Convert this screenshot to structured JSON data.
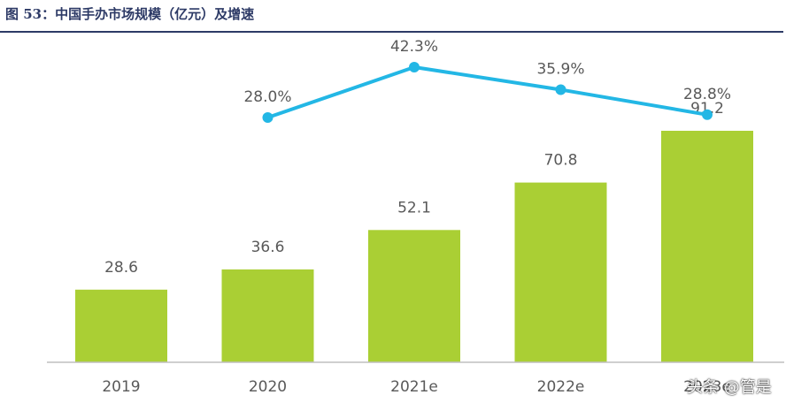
{
  "header": {
    "title": "图 53：中国手办市场规模（亿元）及增速"
  },
  "watermark": {
    "text": "头条 @管是"
  },
  "colors": {
    "bar": "#aacf34",
    "line": "#23b7e5",
    "header": "#2d3a66",
    "label": "#595959"
  },
  "chart_data": {
    "type": "bar",
    "categories": [
      "2019",
      "2020",
      "2021e",
      "2022e",
      "2023e"
    ],
    "series": [
      {
        "type": "bar",
        "values": [
          28.6,
          36.6,
          52.1,
          70.8,
          91.2
        ],
        "value_labels": [
          "28.6",
          "36.6",
          "52.1",
          "70.8",
          "91.2"
        ]
      },
      {
        "type": "line",
        "values": [
          null,
          28.0,
          42.3,
          35.9,
          28.8
        ],
        "value_labels": [
          "",
          "28.0%",
          "42.3%",
          "35.9%",
          "28.8%"
        ]
      }
    ],
    "title": "中国手办市场规模（亿元）及增速",
    "xlabel": "",
    "ylabel": "",
    "ylim": [
      0,
      100
    ],
    "grid": false,
    "legend": "none"
  }
}
